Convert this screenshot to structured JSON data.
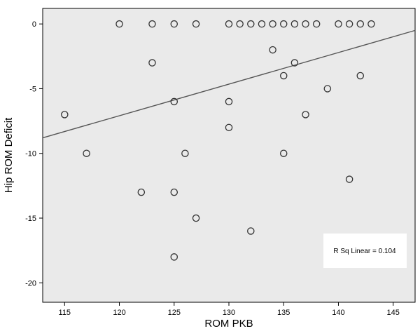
{
  "chart_data": {
    "type": "scatter",
    "xlabel": "ROM PKB",
    "ylabel": "Hip ROM Deficit",
    "xlim": [
      113,
      147
    ],
    "ylim": [
      -21.5,
      1.2
    ],
    "xticks": [
      115,
      120,
      125,
      130,
      135,
      140,
      145
    ],
    "yticks": [
      0,
      -5,
      -10,
      -15,
      -20
    ],
    "grid": false,
    "background_color": "#eaeaea",
    "marker_color": "#333333",
    "line_color": "#555555",
    "points": [
      {
        "x": 120,
        "y": 0
      },
      {
        "x": 123,
        "y": 0
      },
      {
        "x": 125,
        "y": 0
      },
      {
        "x": 127,
        "y": 0
      },
      {
        "x": 130,
        "y": 0
      },
      {
        "x": 131,
        "y": 0
      },
      {
        "x": 132,
        "y": 0
      },
      {
        "x": 133,
        "y": 0
      },
      {
        "x": 134,
        "y": 0
      },
      {
        "x": 135,
        "y": 0
      },
      {
        "x": 136,
        "y": 0
      },
      {
        "x": 137,
        "y": 0
      },
      {
        "x": 138,
        "y": 0
      },
      {
        "x": 140,
        "y": 0
      },
      {
        "x": 141,
        "y": 0
      },
      {
        "x": 142,
        "y": 0
      },
      {
        "x": 143,
        "y": 0
      },
      {
        "x": 134,
        "y": -2
      },
      {
        "x": 123,
        "y": -3
      },
      {
        "x": 136,
        "y": -3
      },
      {
        "x": 135,
        "y": -4
      },
      {
        "x": 142,
        "y": -4
      },
      {
        "x": 139,
        "y": -5
      },
      {
        "x": 125,
        "y": -6
      },
      {
        "x": 130,
        "y": -6
      },
      {
        "x": 115,
        "y": -7
      },
      {
        "x": 137,
        "y": -7
      },
      {
        "x": 130,
        "y": -8
      },
      {
        "x": 117,
        "y": -10
      },
      {
        "x": 126,
        "y": -10
      },
      {
        "x": 135,
        "y": -10
      },
      {
        "x": 141,
        "y": -12
      },
      {
        "x": 122,
        "y": -13
      },
      {
        "x": 125,
        "y": -13
      },
      {
        "x": 127,
        "y": -15
      },
      {
        "x": 132,
        "y": -16
      },
      {
        "x": 125,
        "y": -18
      }
    ],
    "fit_line": {
      "x": [
        113,
        147
      ],
      "y": [
        -8.8,
        -0.5
      ]
    },
    "annotation": "R Sq Linear = 0.104"
  }
}
